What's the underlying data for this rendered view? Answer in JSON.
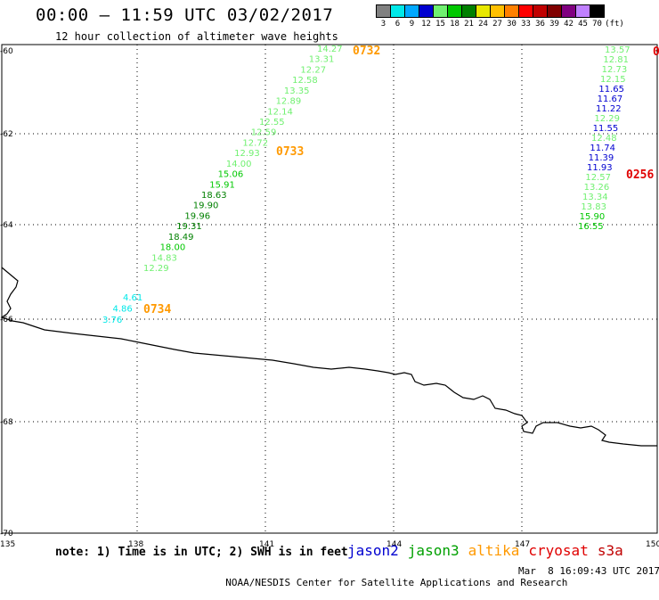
{
  "header": {
    "title": "00:00 – 11:59 UTC 03/02/2017",
    "subtitle": "12 hour collection of altimeter wave heights"
  },
  "color_scale": {
    "unit": "(ft)",
    "stops": [
      {
        "label": "3",
        "color": "#808080"
      },
      {
        "label": "6",
        "color": "#00e8e8"
      },
      {
        "label": "9",
        "color": "#00a8ff"
      },
      {
        "label": "12",
        "color": "#0000d0"
      },
      {
        "label": "15",
        "color": "#70f070"
      },
      {
        "label": "18",
        "color": "#00c800"
      },
      {
        "label": "21",
        "color": "#008000"
      },
      {
        "label": "24",
        "color": "#e8e800"
      },
      {
        "label": "27",
        "color": "#ffc000"
      },
      {
        "label": "30",
        "color": "#ff8000"
      },
      {
        "label": "33",
        "color": "#ff0000"
      },
      {
        "label": "36",
        "color": "#c00000"
      },
      {
        "label": "39",
        "color": "#800000"
      },
      {
        "label": "42",
        "color": "#800080"
      },
      {
        "label": "45",
        "color": "#c080ff"
      },
      {
        "label": "70",
        "color": "#000000"
      }
    ]
  },
  "map": {
    "lat_labels": [
      "-60",
      "-62",
      "-64",
      "-66",
      "-68",
      "-70"
    ],
    "lon_labels": [
      "135",
      "138",
      "141",
      "144",
      "147",
      "150"
    ]
  },
  "tracks": [
    {
      "satellite": "jason3",
      "time_label": "0733",
      "time_color": "#ff9900",
      "points": [
        {
          "v": "12.29",
          "c": "#70f070"
        },
        {
          "v": "14.83",
          "c": "#70f070"
        },
        {
          "v": "18.00",
          "c": "#00c800"
        },
        {
          "v": "18.49",
          "c": "#008000"
        },
        {
          "v": "19.31",
          "c": "#008000"
        },
        {
          "v": "19.96",
          "c": "#008000"
        },
        {
          "v": "19.90",
          "c": "#008000"
        },
        {
          "v": "18.63",
          "c": "#008000"
        },
        {
          "v": "15.91",
          "c": "#00c800"
        },
        {
          "v": "15.06",
          "c": "#00c800"
        },
        {
          "v": "14.00",
          "c": "#70f070"
        },
        {
          "v": "12.93",
          "c": "#70f070"
        },
        {
          "v": "12.72",
          "c": "#70f070"
        },
        {
          "v": "12.59",
          "c": "#70f070"
        },
        {
          "v": "12.55",
          "c": "#70f070"
        },
        {
          "v": "12.14",
          "c": "#70f070"
        },
        {
          "v": "12.89",
          "c": "#70f070"
        },
        {
          "v": "13.35",
          "c": "#70f070"
        },
        {
          "v": "12.58",
          "c": "#70f070"
        },
        {
          "v": "12.27",
          "c": "#70f070"
        },
        {
          "v": "13.31",
          "c": "#70f070"
        },
        {
          "v": "14.27",
          "c": "#70f070"
        }
      ],
      "extra_time_label": "0732"
    },
    {
      "satellite": "altika",
      "time_label": "0734",
      "time_color": "#ff9900",
      "points": [
        {
          "v": "3.76",
          "c": "#00e8e8"
        },
        {
          "v": "4.86",
          "c": "#00e8e8"
        },
        {
          "v": "4.61",
          "c": "#00e8e8"
        }
      ]
    },
    {
      "satellite": "cryosat",
      "time_label": "0256",
      "time_color": "#e00000",
      "points": [
        {
          "v": "16.55",
          "c": "#00c800"
        },
        {
          "v": "15.90",
          "c": "#00c800"
        },
        {
          "v": "13.83",
          "c": "#70f070"
        },
        {
          "v": "13.34",
          "c": "#70f070"
        },
        {
          "v": "13.26",
          "c": "#70f070"
        },
        {
          "v": "12.57",
          "c": "#70f070"
        },
        {
          "v": "11.93",
          "c": "#0000d0"
        },
        {
          "v": "11.39",
          "c": "#0000d0"
        },
        {
          "v": "11.74",
          "c": "#0000d0"
        },
        {
          "v": "12.48",
          "c": "#70f070"
        },
        {
          "v": "11.55",
          "c": "#0000d0"
        },
        {
          "v": "12.29",
          "c": "#70f070"
        },
        {
          "v": "11.22",
          "c": "#0000d0"
        },
        {
          "v": "11.67",
          "c": "#0000d0"
        },
        {
          "v": "11.65",
          "c": "#0000d0"
        },
        {
          "v": "12.15",
          "c": "#70f070"
        },
        {
          "v": "12.73",
          "c": "#70f070"
        },
        {
          "v": "12.81",
          "c": "#70f070"
        },
        {
          "v": "13.57",
          "c": "#70f070"
        }
      ],
      "extra_time_label": "0"
    }
  ],
  "footer": {
    "note": "note: 1) Time is in UTC; 2) SWH is in feet",
    "legend": [
      {
        "name": "jason2",
        "color": "#0000d0"
      },
      {
        "name": "jason3",
        "color": "#00a000"
      },
      {
        "name": "altika",
        "color": "#ff9900"
      },
      {
        "name": "cryosat",
        "color": "#e00000"
      },
      {
        "name": "s3a",
        "color": "#c00000"
      }
    ],
    "credit": "NOAA/NESDIS Center for Satellite Applications and Research",
    "timestamp": "Mar  8 16:09:43 UTC 2017"
  }
}
